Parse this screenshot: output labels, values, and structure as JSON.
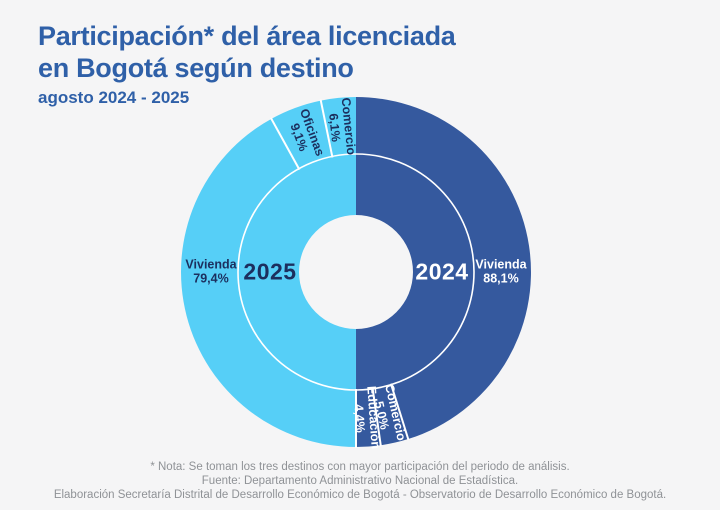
{
  "header": {
    "title_line1": "Participación* del área licenciada",
    "title_line2": "en Bogotá según destino",
    "subtitle": "agosto 2024 - 2025"
  },
  "footer": {
    "note": "* Nota: Se toman los tres destinos con mayor participación del periodo de análisis.",
    "source": "Fuente: Departamento Administrativo Nacional de Estadística.",
    "elaboration": "Elaboración Secretaría Distrital de Desarrollo Económico de Bogotá - Observatorio de Desarrollo Económico de Bogotá."
  },
  "colors": {
    "background": "#F5F5F6",
    "title_blue": "#2F60A8",
    "light_blue_2025": "#56CFF7",
    "dark_blue_2024": "#35599E",
    "navy_text": "#1C2F5E",
    "white_text": "#FFFFFF",
    "footer_gray": "#8F9296"
  },
  "chart_data": {
    "type": "pie",
    "variant": "split-donut-two-rings",
    "title": "Participación* del área licenciada en Bogotá según destino",
    "subtitle": "agosto 2024 - 2025",
    "units": "percent",
    "layout_note": "Each year fills one half of the donut (2025 left, 2024 right); inner ring shows the year, outer ring the top-3 destination segments, normalized to 180° per half; segment order listed from 12 o'clock outward.",
    "halves": [
      {
        "year": "2025",
        "side": "left",
        "color": "#56CFF7",
        "label_color": "#1C2F5E",
        "segments": [
          {
            "label": "Comercio",
            "value_text": "6,1%",
            "value": 6.1
          },
          {
            "label": "Oficinas",
            "value_text": "9,1%",
            "value": 9.1
          },
          {
            "label": "Vivienda",
            "value_text": "79,4%",
            "value": 79.4
          }
        ]
      },
      {
        "year": "2024",
        "side": "right",
        "color": "#35599E",
        "label_color": "#FFFFFF",
        "segments": [
          {
            "label": "Vivienda",
            "value_text": "88,1%",
            "value": 88.1
          },
          {
            "label": "Comercio",
            "value_text": "5,0%",
            "value": 5.0
          },
          {
            "label": "Educación",
            "value_text": "4,4%",
            "value": 4.4
          }
        ]
      }
    ]
  }
}
